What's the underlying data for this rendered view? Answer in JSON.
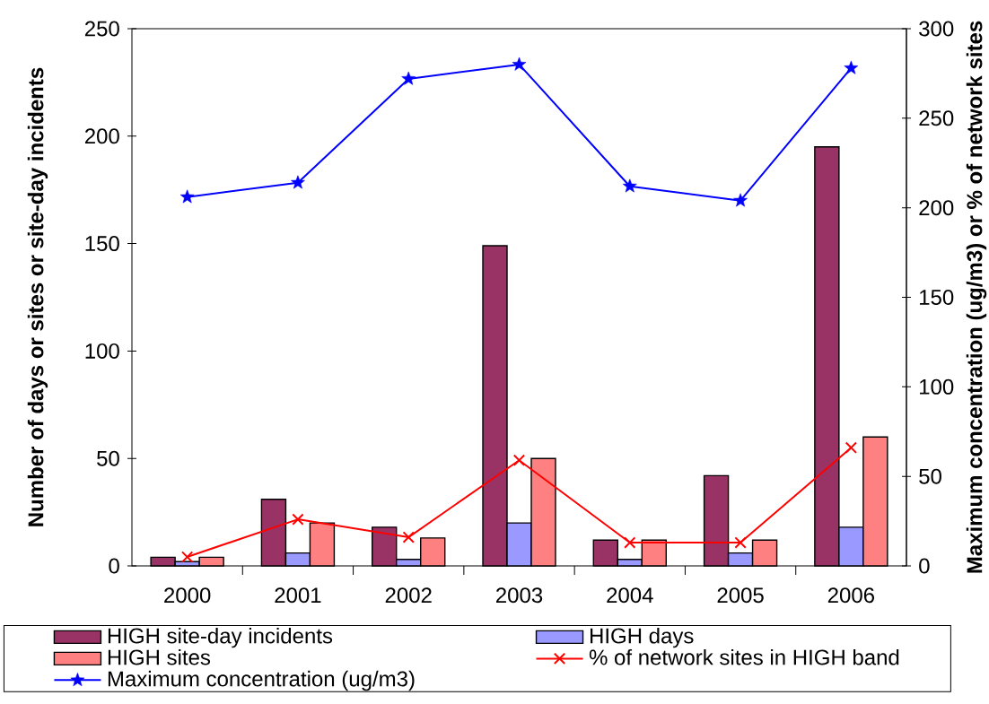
{
  "chart_data": {
    "type": "bar",
    "categories": [
      "2000",
      "2001",
      "2002",
      "2003",
      "2004",
      "2005",
      "2006"
    ],
    "ylabel": "Number of days or sites or site-day incidents",
    "y2label": "Maximum concentration (ug/m3) or % of network sites",
    "ylim": [
      0,
      250
    ],
    "yticks": [
      0,
      50,
      100,
      150,
      200,
      250
    ],
    "y2lim": [
      0,
      300
    ],
    "y2ticks": [
      0,
      50,
      100,
      150,
      200,
      250,
      300
    ],
    "legend": "bottom",
    "series": [
      {
        "name": "HIGH site-day incidents",
        "color": "#993366",
        "values": [
          4,
          31,
          18,
          149,
          12,
          42,
          195
        ]
      },
      {
        "name": "HIGH days",
        "color": "#9999ff",
        "values": [
          2,
          6,
          3,
          20,
          3,
          6,
          18
        ]
      },
      {
        "name": "HIGH sites",
        "color": "#ff8080",
        "values": [
          4,
          20,
          13,
          50,
          12,
          12,
          60
        ]
      },
      {
        "name": "% of network sites in HIGH band",
        "type": "line",
        "axis": "y2",
        "color": "#ff0000",
        "marker": "cross",
        "values": [
          5,
          26,
          16,
          59,
          13,
          13,
          66
        ]
      },
      {
        "name": "Maximum concentration (ug/m3)",
        "type": "line",
        "axis": "y2",
        "color": "#0000ff",
        "marker": "star",
        "values": [
          206,
          214,
          272,
          280,
          212,
          204,
          278
        ]
      }
    ]
  }
}
